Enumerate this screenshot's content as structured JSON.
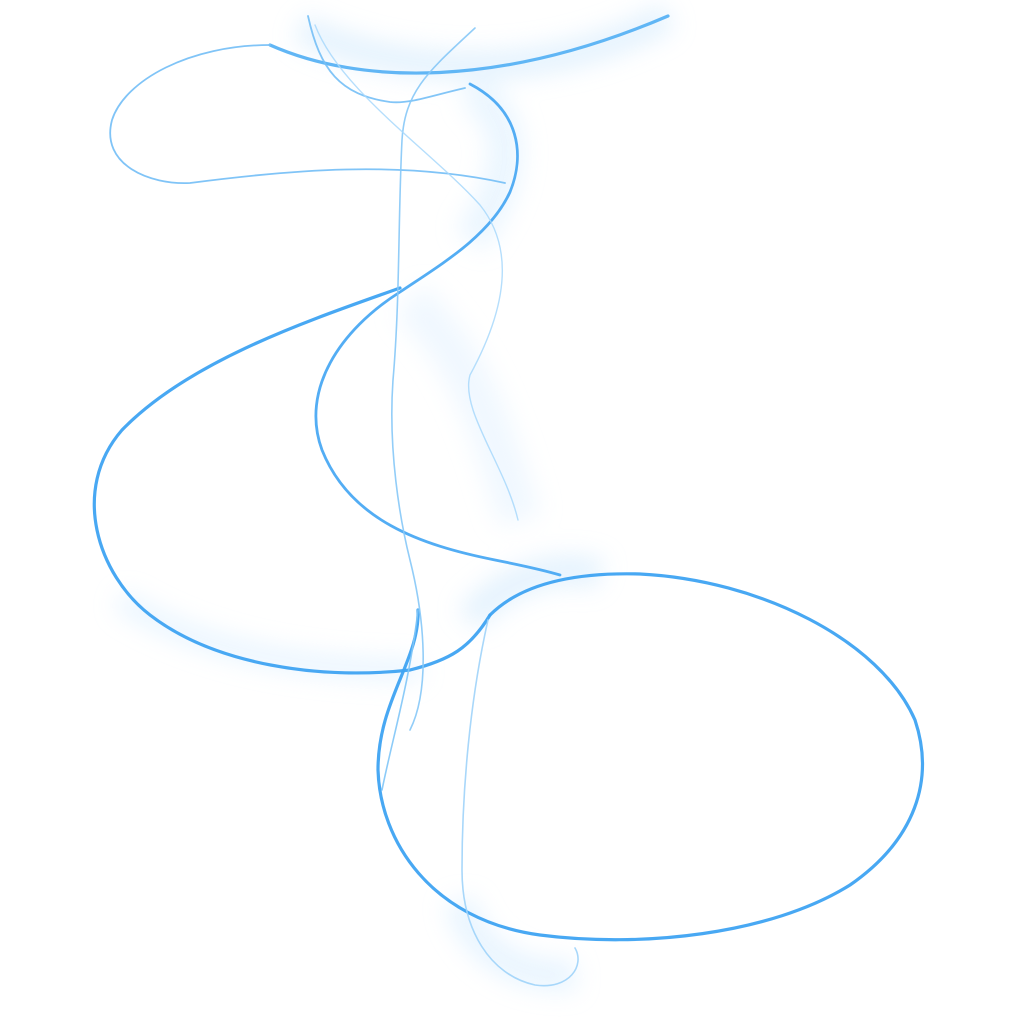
{
  "artwork": {
    "background_color": "#ffffff",
    "stroke_color": "#2f9cf0",
    "glow_color": "#b9defc",
    "description_visible": ""
  }
}
